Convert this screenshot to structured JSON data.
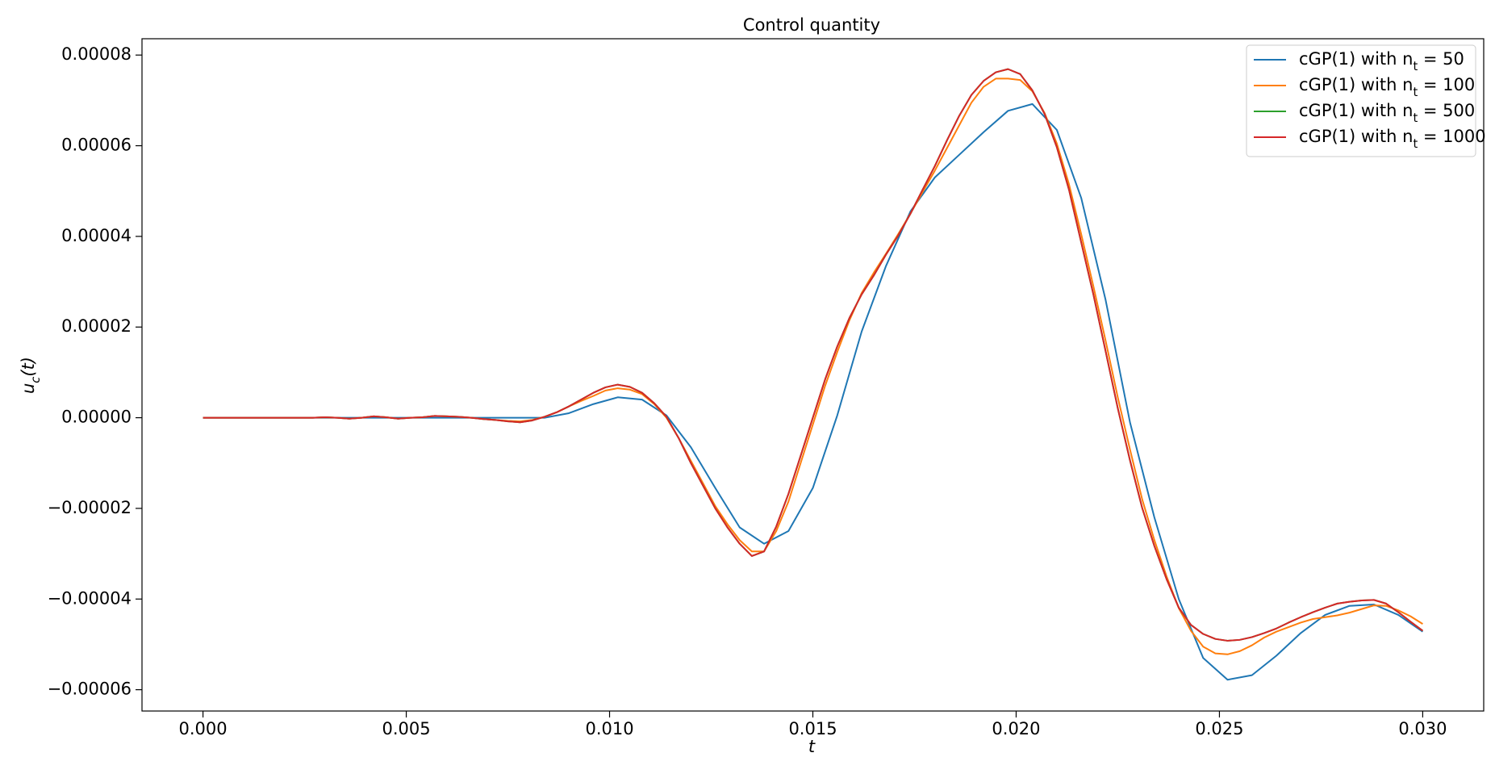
{
  "chart_data": {
    "type": "line",
    "title": "Control quantity",
    "xlabel": "t",
    "ylabel": "u_c(t)",
    "xlim": [
      -0.0015,
      0.0315
    ],
    "ylim": [
      -6.47e-05,
      8.36e-05
    ],
    "xticks": [
      {
        "value": 0,
        "label": "0.000"
      },
      {
        "value": 0.005,
        "label": "0.005"
      },
      {
        "value": 0.01,
        "label": "0.010"
      },
      {
        "value": 0.015,
        "label": "0.015"
      },
      {
        "value": 0.02,
        "label": "0.020"
      },
      {
        "value": 0.025,
        "label": "0.025"
      },
      {
        "value": 0.03,
        "label": "0.030"
      }
    ],
    "yticks": [
      {
        "value": -6e-05,
        "label": "−0.00006"
      },
      {
        "value": -4e-05,
        "label": "−0.00004"
      },
      {
        "value": -2e-05,
        "label": "−0.00002"
      },
      {
        "value": 0,
        "label": "0.00000"
      },
      {
        "value": 2e-05,
        "label": "0.00002"
      },
      {
        "value": 4e-05,
        "label": "0.00004"
      },
      {
        "value": 6e-05,
        "label": "0.00006"
      },
      {
        "value": 8e-05,
        "label": "0.00008"
      }
    ],
    "grid": false,
    "legend": "upper right",
    "x": [
      0,
      0.0003,
      0.0006,
      0.0009,
      0.0012,
      0.0015,
      0.0018,
      0.0021,
      0.0024,
      0.0027,
      0.003,
      0.0033,
      0.0036,
      0.0039,
      0.0042,
      0.0045,
      0.0048,
      0.0051,
      0.0054,
      0.0057,
      0.006,
      0.0063,
      0.0066,
      0.0069,
      0.0072,
      0.0075,
      0.0078,
      0.0081,
      0.0084,
      0.0087,
      0.009,
      0.0093,
      0.0096,
      0.0099,
      0.0102,
      0.0105,
      0.0108,
      0.0111,
      0.0114,
      0.0117,
      0.012,
      0.0123,
      0.0126,
      0.0129,
      0.0132,
      0.0135,
      0.0138,
      0.0141,
      0.0144,
      0.0147,
      0.015,
      0.0153,
      0.0156,
      0.0159,
      0.0162,
      0.0165,
      0.0168,
      0.0171,
      0.0174,
      0.0177,
      0.018,
      0.0183,
      0.0186,
      0.0189,
      0.0192,
      0.0195,
      0.0198,
      0.0201,
      0.0204,
      0.0207,
      0.021,
      0.0213,
      0.0216,
      0.0219,
      0.0222,
      0.0225,
      0.0228,
      0.0231,
      0.0234,
      0.0237,
      0.024,
      0.0243,
      0.0246,
      0.0249,
      0.0252,
      0.0255,
      0.0258,
      0.0261,
      0.0264,
      0.0267,
      0.027,
      0.0273,
      0.0276,
      0.0279,
      0.0282,
      0.0285,
      0.0288,
      0.0291,
      0.0294,
      0.0297,
      0.03
    ],
    "series": [
      {
        "name": "cGP(1) with n_t = 50",
        "color": "#1f77b4",
        "x": [
          0,
          0.0006,
          0.0012,
          0.0018,
          0.0024,
          0.003,
          0.0036,
          0.0042,
          0.0048,
          0.0054,
          0.006,
          0.0066,
          0.0072,
          0.0078,
          0.0084,
          0.009,
          0.0096,
          0.0102,
          0.0108,
          0.0114,
          0.012,
          0.0126,
          0.0132,
          0.0138,
          0.0144,
          0.015,
          0.0156,
          0.0162,
          0.0168,
          0.0174,
          0.018,
          0.0186,
          0.0192,
          0.0198,
          0.0204,
          0.021,
          0.0216,
          0.0222,
          0.0228,
          0.0234,
          0.024,
          0.0246,
          0.0252,
          0.0258,
          0.0264,
          0.027,
          0.0276,
          0.0282,
          0.0288,
          0.0294,
          0.03
        ],
        "values": [
          0,
          0,
          0,
          0,
          0,
          0,
          0,
          0,
          0,
          0,
          0,
          0,
          0,
          0,
          0,
          1e-06,
          3e-06,
          4.5e-06,
          4e-06,
          5e-07,
          -6.5e-06,
          -1.55e-05,
          -2.42e-05,
          -2.78e-05,
          -2.5e-05,
          -1.55e-05,
          5e-07,
          1.9e-05,
          3.35e-05,
          4.55e-05,
          5.3e-05,
          5.8e-05,
          6.3e-05,
          6.77e-05,
          6.92e-05,
          6.35e-05,
          4.85e-05,
          2.6e-05,
          -1e-06,
          -2.2e-05,
          -4e-05,
          -5.3e-05,
          -5.78e-05,
          -5.68e-05,
          -5.25e-05,
          -4.75e-05,
          -4.35e-05,
          -4.15e-05,
          -4.12e-05,
          -4.35e-05,
          -4.72e-05
        ]
      },
      {
        "name": "cGP(1) with n_t = 100",
        "color": "#ff7f0e",
        "values": [
          0,
          0,
          0,
          0,
          0,
          0,
          0,
          0,
          0,
          0,
          1e-07,
          0,
          -2e-07,
          0,
          3e-07,
          1e-07,
          -2e-07,
          0,
          1e-07,
          4e-07,
          3e-07,
          2e-07,
          0,
          -3e-07,
          -5e-07,
          -7e-07,
          -8e-07,
          -5e-07,
          2e-07,
          1.2e-06,
          2.5e-06,
          3.7e-06,
          4.8e-06,
          6e-06,
          6.5e-06,
          6.2e-06,
          5.2e-06,
          3e-06,
          0,
          -4.5e-06,
          -9.5e-06,
          -1.45e-05,
          -1.95e-05,
          -2.35e-05,
          -2.7e-05,
          -2.95e-05,
          -2.95e-05,
          -2.5e-05,
          -1.85e-05,
          -1e-05,
          -1.5e-06,
          7e-06,
          1.45e-05,
          2.15e-05,
          2.75e-05,
          3.2e-05,
          3.62e-05,
          4.05e-05,
          4.5e-05,
          4.98e-05,
          5.45e-05,
          5.95e-05,
          6.45e-05,
          6.95e-05,
          7.3e-05,
          7.48e-05,
          7.48e-05,
          7.45e-05,
          7.2e-05,
          6.72e-05,
          6.05e-05,
          5.15e-05,
          4.05e-05,
          2.9e-05,
          1.7e-05,
          4.5e-06,
          -7e-06,
          -1.8e-05,
          -2.7e-05,
          -3.5e-05,
          -4.2e-05,
          -4.7e-05,
          -5.05e-05,
          -5.2e-05,
          -5.22e-05,
          -5.15e-05,
          -5.02e-05,
          -4.85e-05,
          -4.72e-05,
          -4.62e-05,
          -4.52e-05,
          -4.44e-05,
          -4.4e-05,
          -4.36e-05,
          -4.3e-05,
          -4.22e-05,
          -4.14e-05,
          -4.15e-05,
          -4.25e-05,
          -4.38e-05,
          -4.55e-05
        ]
      },
      {
        "name": "cGP(1) with n_t = 500",
        "color": "#2ca02c",
        "values": [
          0,
          0,
          0,
          0,
          0,
          0,
          0,
          0,
          0,
          0,
          1e-07,
          0,
          -2e-07,
          0,
          3e-07,
          1e-07,
          -2e-07,
          0,
          1e-07,
          4e-07,
          3e-07,
          2e-07,
          0,
          -3e-07,
          -5e-07,
          -8e-07,
          -1e-06,
          -6e-07,
          2e-07,
          1.2e-06,
          2.5e-06,
          4e-06,
          5.5e-06,
          6.7e-06,
          7.3e-06,
          6.8e-06,
          5.5e-06,
          3.2e-06,
          2e-07,
          -4.5e-06,
          -1e-05,
          -1.5e-05,
          -2e-05,
          -2.42e-05,
          -2.78e-05,
          -3.05e-05,
          -2.95e-05,
          -2.4e-05,
          -1.68e-05,
          -8.4e-06,
          0,
          8.4e-06,
          1.57e-05,
          2.2e-05,
          2.72e-05,
          3.14e-05,
          3.6e-05,
          4.02e-05,
          4.5e-05,
          5.03e-05,
          5.55e-05,
          6.12e-05,
          6.66e-05,
          7.12e-05,
          7.43e-05,
          7.62e-05,
          7.69e-05,
          7.58e-05,
          7.22e-05,
          6.7e-05,
          5.97e-05,
          5.03e-05,
          3.87e-05,
          2.72e-05,
          1.47e-05,
          2.1e-06,
          -9.4e-06,
          -1.99e-05,
          -2.83e-05,
          -3.56e-05,
          -4.19e-05,
          -4.57e-05,
          -4.77e-05,
          -4.88e-05,
          -4.92e-05,
          -4.9e-05,
          -4.84e-05,
          -4.75e-05,
          -4.65e-05,
          -4.52e-05,
          -4.4e-05,
          -4.29e-05,
          -4.19e-05,
          -4.1e-05,
          -4.06e-05,
          -4.03e-05,
          -4.02e-05,
          -4.1e-05,
          -4.29e-05,
          -4.5e-05,
          -4.7e-05
        ]
      },
      {
        "name": "cGP(1) with n_t = 1000",
        "color": "#d62728",
        "values": [
          0,
          0,
          0,
          0,
          0,
          0,
          0,
          0,
          0,
          0,
          1e-07,
          0,
          -2e-07,
          0,
          3e-07,
          1e-07,
          -2e-07,
          0,
          1e-07,
          4e-07,
          3e-07,
          2e-07,
          0,
          -3e-07,
          -5e-07,
          -8e-07,
          -1e-06,
          -6e-07,
          2e-07,
          1.2e-06,
          2.5e-06,
          4e-06,
          5.5e-06,
          6.7e-06,
          7.3e-06,
          6.8e-06,
          5.5e-06,
          3.2e-06,
          2e-07,
          -4.5e-06,
          -1e-05,
          -1.5e-05,
          -2e-05,
          -2.42e-05,
          -2.78e-05,
          -3.05e-05,
          -2.95e-05,
          -2.4e-05,
          -1.68e-05,
          -8.4e-06,
          0,
          8.4e-06,
          1.57e-05,
          2.2e-05,
          2.72e-05,
          3.14e-05,
          3.6e-05,
          4.02e-05,
          4.5e-05,
          5.03e-05,
          5.55e-05,
          6.12e-05,
          6.66e-05,
          7.12e-05,
          7.43e-05,
          7.62e-05,
          7.69e-05,
          7.58e-05,
          7.22e-05,
          6.7e-05,
          5.97e-05,
          5.03e-05,
          3.87e-05,
          2.72e-05,
          1.47e-05,
          2.1e-06,
          -9.4e-06,
          -1.99e-05,
          -2.83e-05,
          -3.56e-05,
          -4.19e-05,
          -4.57e-05,
          -4.77e-05,
          -4.88e-05,
          -4.92e-05,
          -4.9e-05,
          -4.84e-05,
          -4.75e-05,
          -4.65e-05,
          -4.52e-05,
          -4.4e-05,
          -4.29e-05,
          -4.19e-05,
          -4.1e-05,
          -4.06e-05,
          -4.03e-05,
          -4.02e-05,
          -4.1e-05,
          -4.29e-05,
          -4.5e-05,
          -4.7e-05
        ]
      }
    ]
  }
}
